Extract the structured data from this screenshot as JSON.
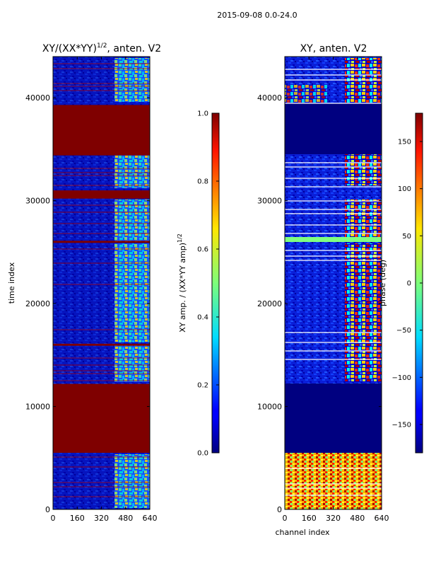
{
  "figure_title": "2015-09-08 0.0-24.0",
  "chart_data": [
    {
      "type": "heatmap",
      "title_main": "XY/(XX*YY)",
      "title_exp": "1/2",
      "title_tail": ", anten. V2",
      "xlabel": "",
      "ylabel": "time index",
      "xlim": [
        0,
        640
      ],
      "ylim": [
        0,
        44000
      ],
      "x_ticks": [
        0,
        160,
        320,
        480,
        640
      ],
      "y_ticks": [
        0,
        10000,
        20000,
        30000,
        40000
      ],
      "saturated_bands": [
        [
          5500,
          12200
        ],
        [
          15900,
          16100
        ],
        [
          25900,
          26100
        ],
        [
          30200,
          31000
        ],
        [
          34400,
          39300
        ]
      ],
      "colorbar": {
        "label_main": "XY amp. / (XX*YY amp)",
        "label_exp": "1/2",
        "range": [
          0.0,
          1.0
        ],
        "ticks": [
          "0.0",
          "0.2",
          "0.4",
          "0.6",
          "0.8",
          "1.0"
        ]
      }
    },
    {
      "type": "heatmap",
      "title": "XY, anten. V2",
      "xlabel": "channel index",
      "ylabel": "",
      "xlim": [
        0,
        640
      ],
      "ylim": [
        0,
        44000
      ],
      "x_ticks": [
        0,
        160,
        320,
        480,
        640
      ],
      "y_ticks": [
        0,
        10000,
        20000,
        30000,
        40000
      ],
      "colorbar": {
        "label": "phase (deg)",
        "range": [
          -180,
          180
        ],
        "ticks": [
          "−150",
          "−100",
          "−50",
          "0",
          "50",
          "100",
          "150"
        ]
      }
    }
  ]
}
